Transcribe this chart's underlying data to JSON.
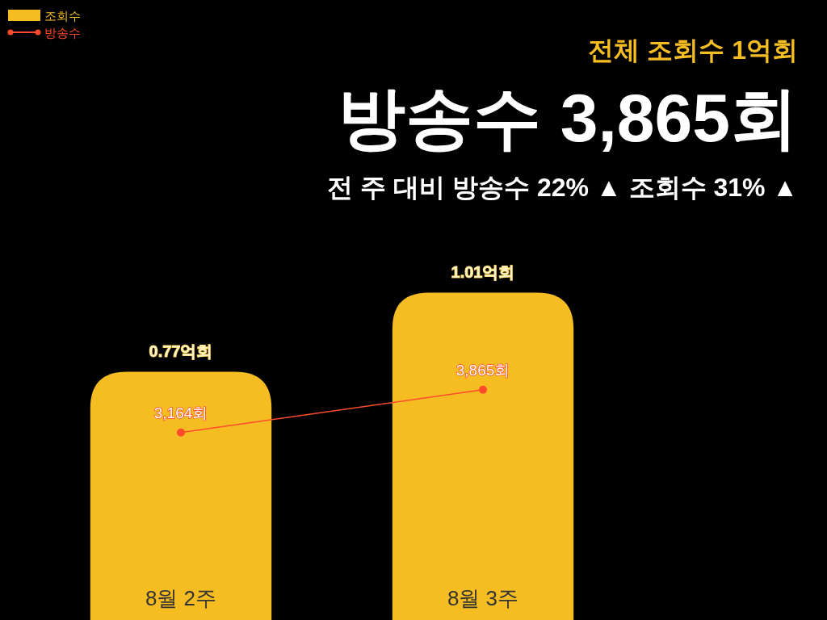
{
  "chart_data": {
    "type": "bar",
    "title": "방송수 3,865회",
    "subtitle": "전체 조회수 1억회",
    "annotations": [
      "전 주 대비 방송수 22% ▲ 조회수 31% ▲"
    ],
    "categories": [
      "8월 2주",
      "8월 3주"
    ],
    "series": [
      {
        "name": "조회수",
        "color": "#f5bd22",
        "values": [
          0.77,
          1.01
        ],
        "value_labels": [
          "0.77억회",
          "1.01억회"
        ]
      },
      {
        "name": "방송수",
        "type": "line",
        "axis": "y2",
        "color": "#ff4b2b",
        "values": [
          3164,
          3865
        ],
        "value_labels": [
          "3,164회",
          "3,865회"
        ],
        "marker": "circle",
        "line_style": "solid"
      }
    ],
    "tick_labels": "x",
    "legend": "top left"
  }
}
